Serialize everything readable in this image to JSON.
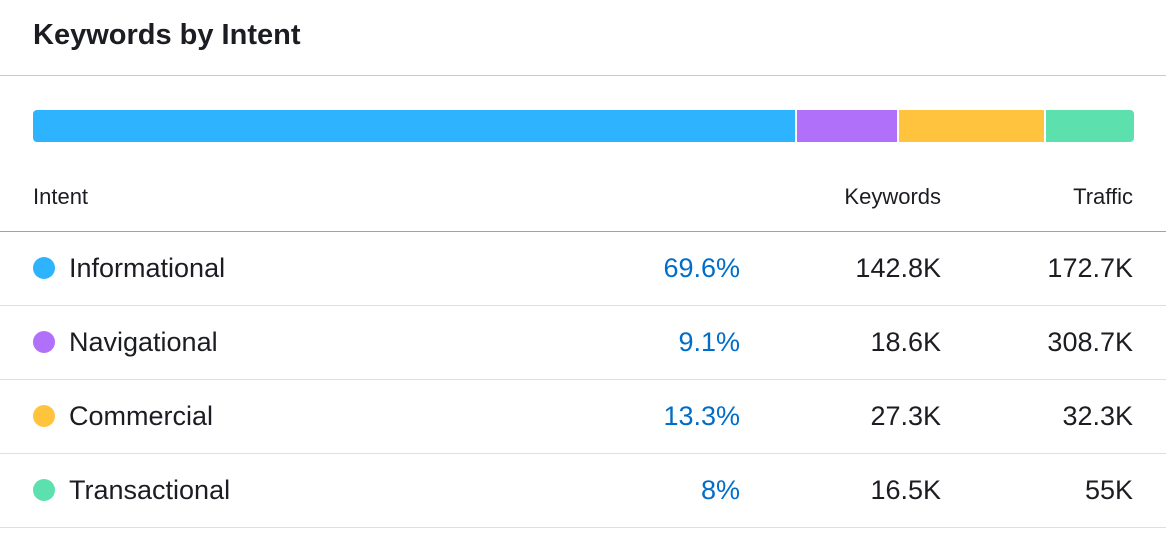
{
  "widget": {
    "title": "Keywords by Intent"
  },
  "table": {
    "headers": {
      "intent": "Intent",
      "keywords": "Keywords",
      "traffic": "Traffic"
    },
    "rows": [
      {
        "intent": "Informational",
        "share": "69.6%",
        "share_value": 69.6,
        "keywords": "142.8K",
        "traffic": "172.7K",
        "color": "#2eb3ff"
      },
      {
        "intent": "Navigational",
        "share": "9.1%",
        "share_value": 9.1,
        "keywords": "18.6K",
        "traffic": "308.7K",
        "color": "#b070fa"
      },
      {
        "intent": "Commercial",
        "share": "13.3%",
        "share_value": 13.3,
        "keywords": "27.3K",
        "traffic": "32.3K",
        "color": "#ffc33d"
      },
      {
        "intent": "Transactional",
        "share": "8%",
        "share_value": 8,
        "keywords": "16.5K",
        "traffic": "55K",
        "color": "#5ce0ae"
      }
    ]
  }
}
